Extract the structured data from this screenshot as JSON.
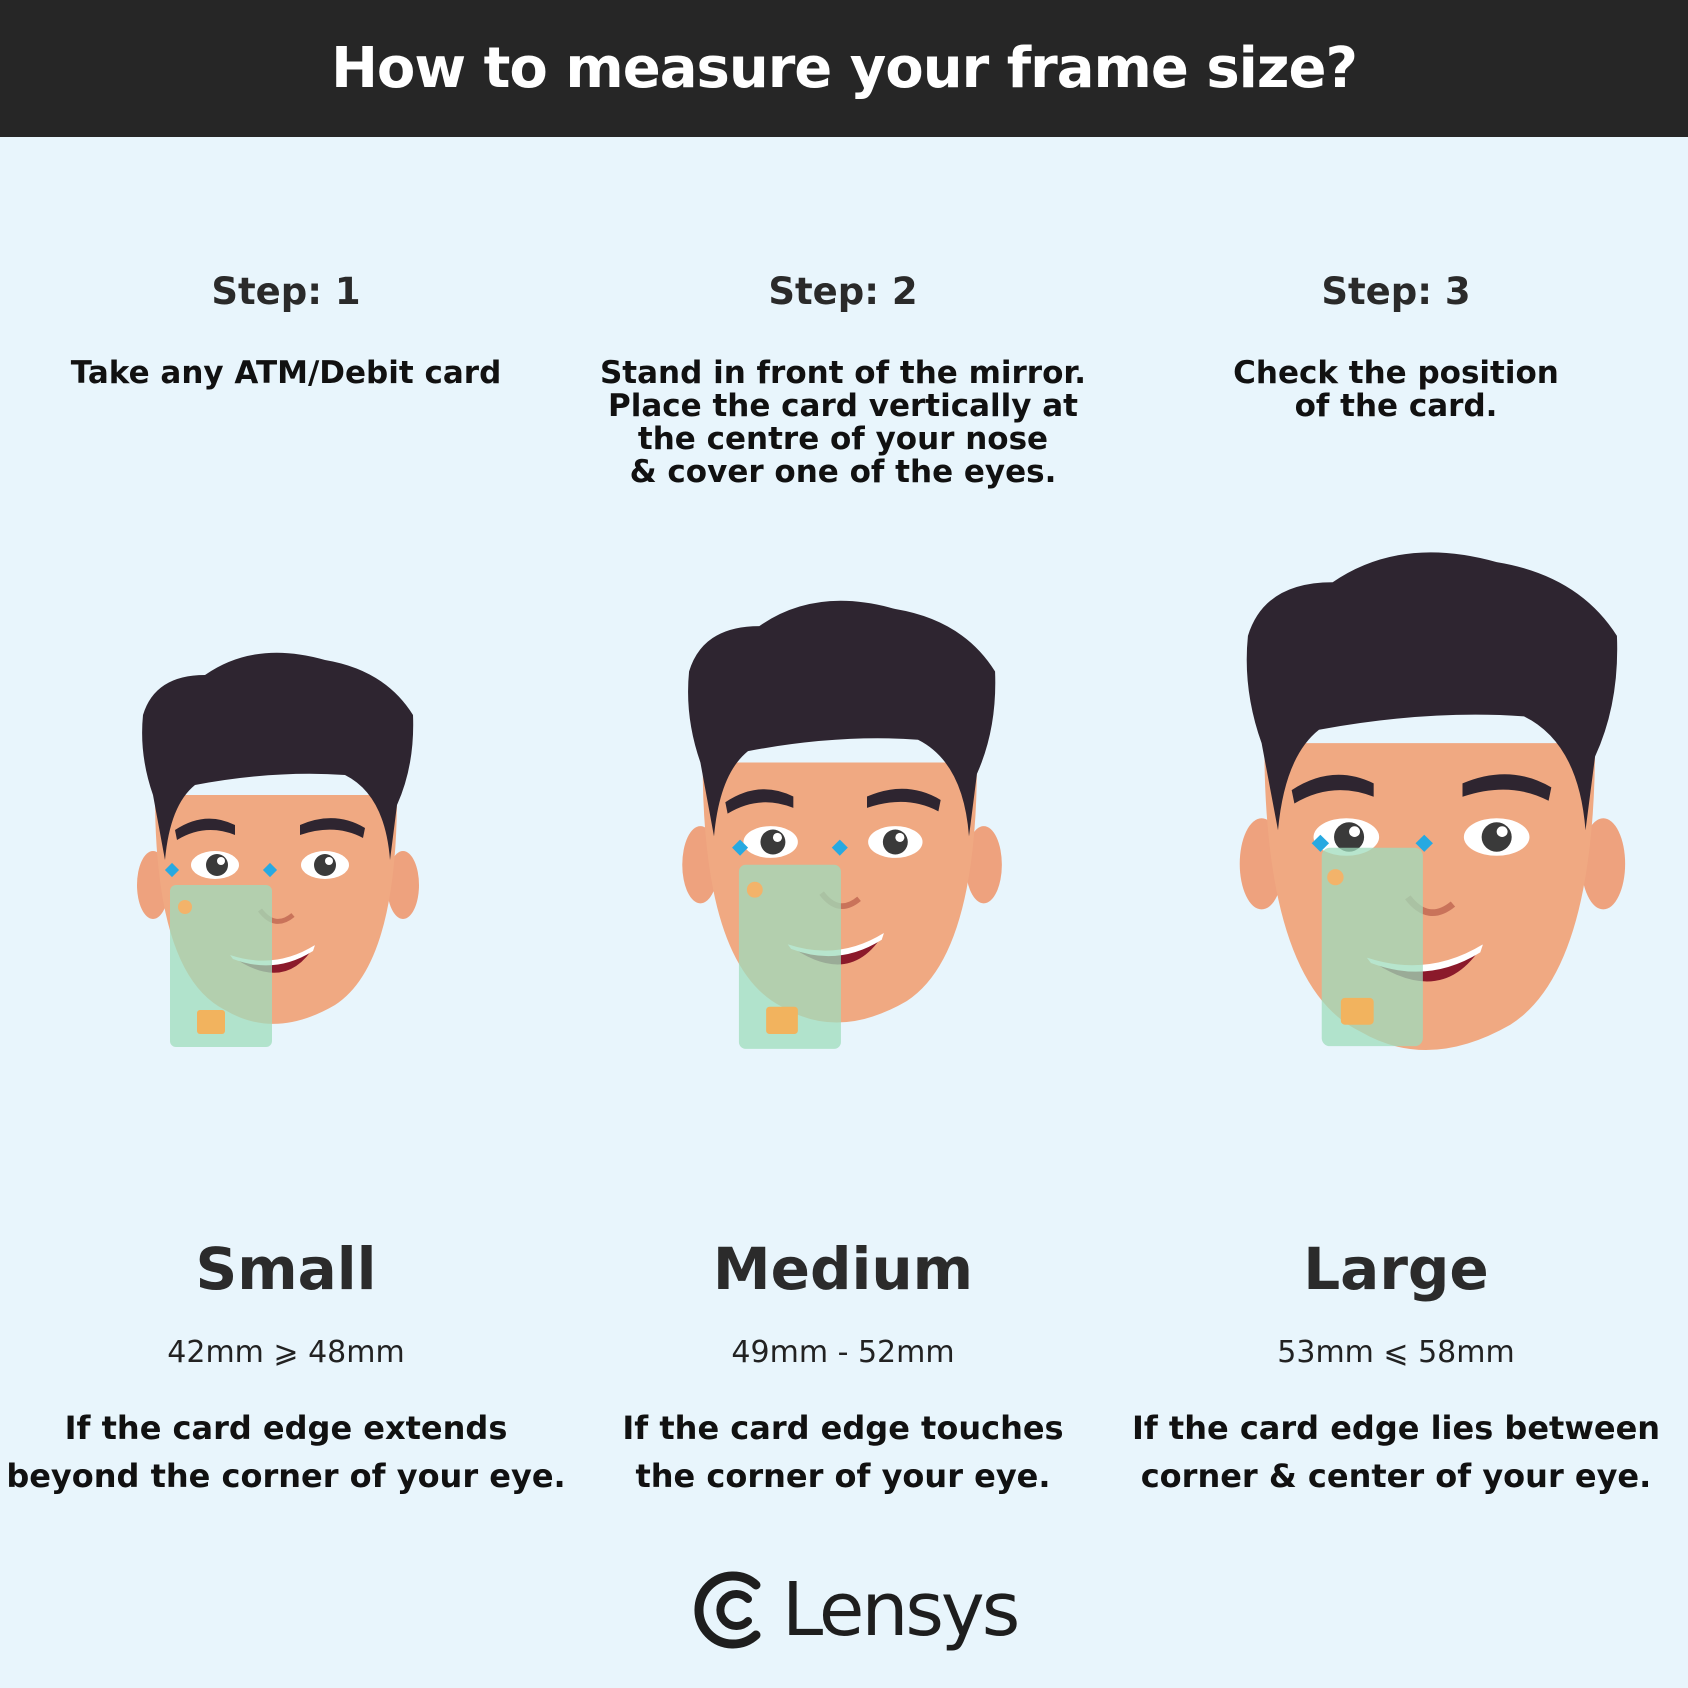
{
  "header": {
    "title": "How to measure your frame size?"
  },
  "steps": [
    {
      "title": "Step: 1",
      "text": "Take any ATM/Debit card",
      "size_name": "Small",
      "size_range": "42mm ⩾ 48mm",
      "size_desc": "If the card edge extends\nbeyond the corner of your eye."
    },
    {
      "title": "Step: 2",
      "text": "Stand in front of the mirror.\nPlace the card vertically at\nthe centre of your nose\n& cover one of the eyes.",
      "size_name": "Medium",
      "size_range": "49mm - 52mm",
      "size_desc": "If the card edge touches\nthe corner of your eye."
    },
    {
      "title": "Step: 3",
      "text": "Check the position\nof the card.",
      "size_name": "Large",
      "size_range": "53mm ⩽ 58mm",
      "size_desc": "If the card edge lies between\ncorner & center of your eye."
    }
  ],
  "logo": {
    "brand": "Lensys",
    "icon": "lensys-logo-icon"
  },
  "colors": {
    "header_bg": "#262626",
    "page_bg": "#e8f5fc",
    "skin": "#f0a982",
    "hair": "#2e2530",
    "card": "#9fdcbc",
    "marker": "#27a9e1"
  }
}
